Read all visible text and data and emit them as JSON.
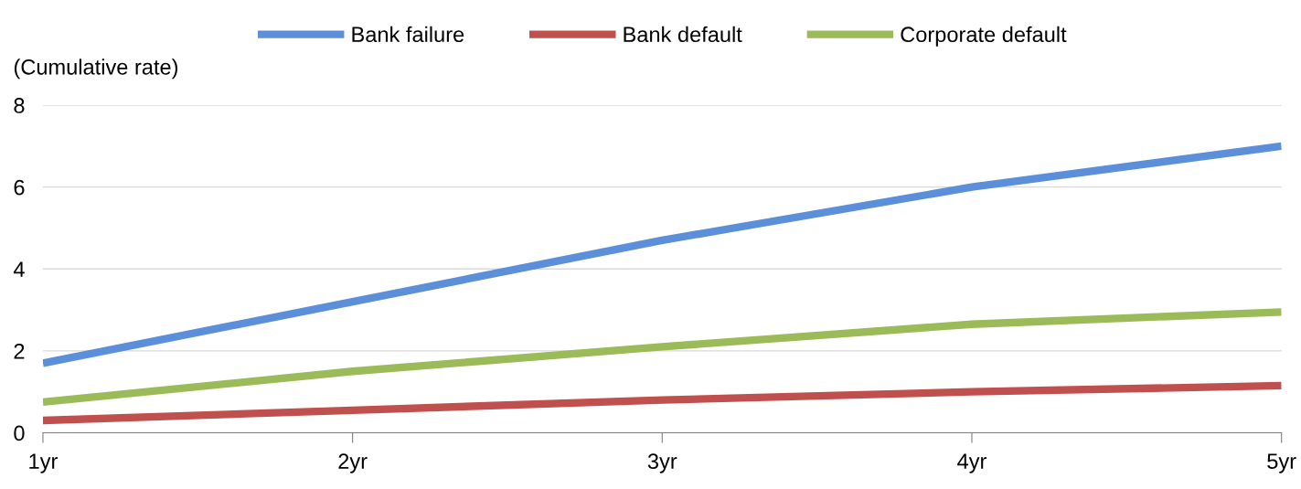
{
  "chart_data": {
    "type": "line",
    "ylabel": "(Cumulative rate)",
    "categories": [
      "1yr",
      "2yr",
      "3yr",
      "4yr",
      "5yr"
    ],
    "series": [
      {
        "name": "Bank failure",
        "color": "#5b8fd9",
        "values": [
          1.7,
          3.2,
          4.7,
          6.0,
          7.0
        ]
      },
      {
        "name": "Bank default",
        "color": "#c0504d",
        "values": [
          0.3,
          0.55,
          0.8,
          1.0,
          1.15
        ]
      },
      {
        "name": "Corporate default",
        "color": "#9bbb59",
        "values": [
          0.75,
          1.5,
          2.1,
          2.65,
          2.95
        ]
      }
    ],
    "ylim": [
      0,
      8
    ],
    "yticks": [
      0,
      2,
      4,
      6,
      8
    ],
    "grid": "y",
    "legend": "top",
    "marker": "none",
    "line_style": "solid"
  }
}
